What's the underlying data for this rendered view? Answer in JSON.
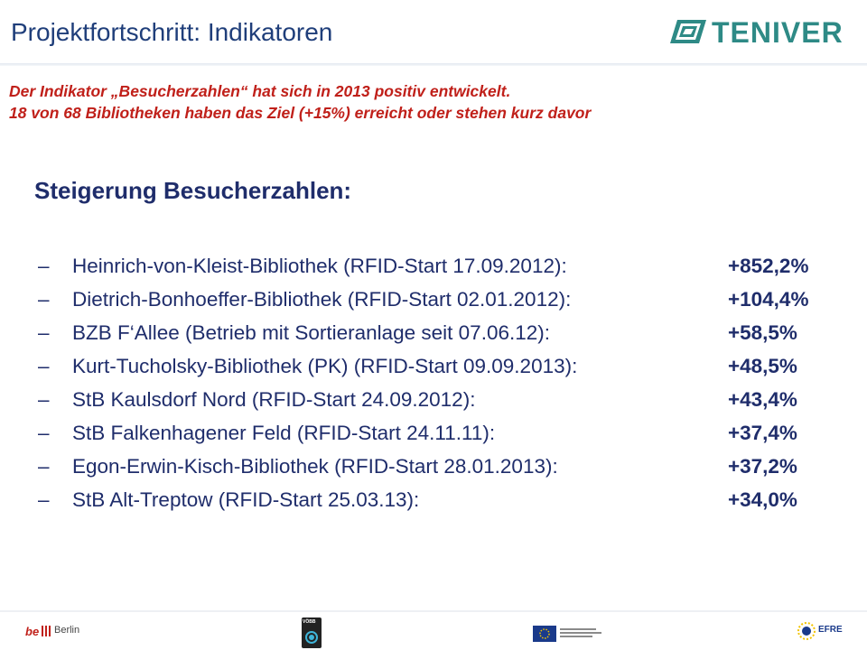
{
  "header": {
    "title": "Projektfortschritt: Indikatoren",
    "logo_text": "TENIVER",
    "logo_color": "#2e8a86"
  },
  "intro": {
    "line1": "Der Indikator „Besucherzahlen“ hat sich in 2013 positiv entwickelt.",
    "line2": "18 von 68 Bibliotheken haben das Ziel (+15%) erreicht oder stehen kurz davor"
  },
  "section": {
    "heading": "Steigerung Besucherzahlen:"
  },
  "items": [
    {
      "label": "Heinrich-von-Kleist-Bibliothek (RFID-Start  17.09.2012):",
      "value": "+852,2%"
    },
    {
      "label": "Dietrich-Bonhoeffer-Bibliothek (RFID-Start  02.01.2012):",
      "value": "+104,4%"
    },
    {
      "label": "BZB F‘Allee (Betrieb mit Sortieranlage seit 07.06.12):",
      "value": "+58,5%"
    },
    {
      "label": "Kurt-Tucholsky-Bibliothek (PK) (RFID-Start  09.09.2013):",
      "value": "+48,5%"
    },
    {
      "label": "StB Kaulsdorf Nord (RFID-Start  24.09.2012):",
      "value": "+43,4%"
    },
    {
      "label": "StB Falkenhagener Feld (RFID-Start 24.11.11):",
      "value": "+37,4%"
    },
    {
      "label": "Egon-Erwin-Kisch-Bibliothek (RFID-Start  28.01.2013):",
      "value": "+37,2%"
    },
    {
      "label": "StB Alt-Treptow (RFID-Start 25.03.13):",
      "value": "+34,0%"
    }
  ],
  "bullet_glyph": "–",
  "footer": {
    "berlin_text": "Berlin",
    "voebb_text": "VÖBB",
    "efre_text": "EFRE"
  },
  "colors": {
    "title": "#1f3e7a",
    "intro": "#c0201a",
    "body": "#1f2d6b"
  }
}
